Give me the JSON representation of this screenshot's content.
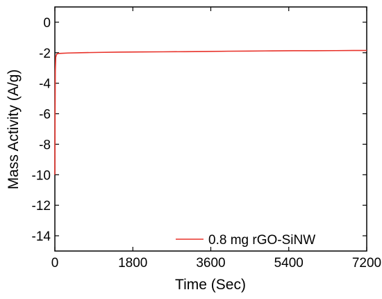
{
  "chart_data": {
    "type": "line",
    "title": "",
    "xlabel": "Time (Sec)",
    "ylabel": "Mass Activity (A/g)",
    "xlim": [
      0,
      7200
    ],
    "ylim": [
      -15,
      1
    ],
    "x_ticks": [
      0,
      1800,
      3600,
      5400,
      7200
    ],
    "x_tick_labels": [
      "0",
      "1800",
      "3600",
      "5400",
      "7200"
    ],
    "y_ticks": [
      0,
      -2,
      -4,
      -6,
      -8,
      -10,
      -12,
      -14
    ],
    "y_tick_labels": [
      "0",
      "-2",
      "-4",
      "-6",
      "-8",
      "-10",
      "-12",
      "-14"
    ],
    "grid": false,
    "legend_position": "bottom-right",
    "series": [
      {
        "name": "0.8 mg rGO-SiNW",
        "color": "#e8322a",
        "x": [
          0,
          5,
          10,
          20,
          40,
          80,
          150,
          300,
          600,
          1000,
          1500,
          2000,
          2500,
          3000,
          3500,
          4000,
          4500,
          5000,
          5500,
          6000,
          6500,
          7000,
          7200
        ],
        "y": [
          -10.0,
          -6.0,
          -3.2,
          -2.3,
          -2.1,
          -2.05,
          -2.04,
          -2.02,
          -2.0,
          -1.98,
          -1.96,
          -1.95,
          -1.94,
          -1.93,
          -1.92,
          -1.9,
          -1.89,
          -1.88,
          -1.87,
          -1.87,
          -1.86,
          -1.85,
          -1.85
        ]
      }
    ]
  }
}
